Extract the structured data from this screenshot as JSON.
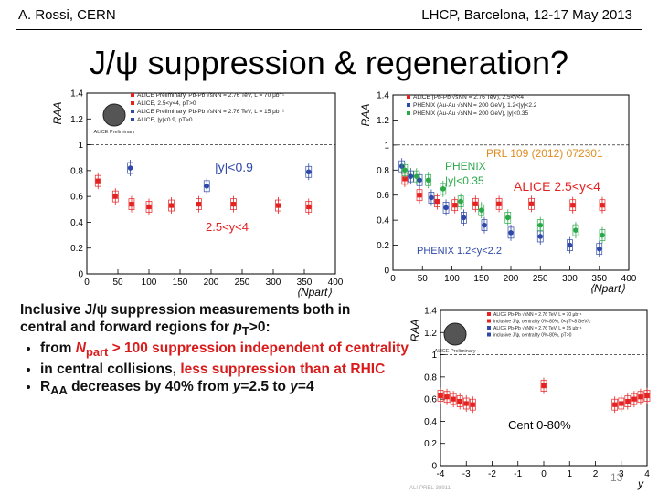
{
  "header": {
    "author": "A. Rossi, CERN",
    "conference": "LHCP, Barcelona, 12-17 May 2013"
  },
  "slide": {
    "title": "J/ψ suppression & regeneration?",
    "page_number": "13"
  },
  "text_block": {
    "intro_line1": "Inclusive J/ψ suppression measurements both in",
    "intro_line2_a": "central and forward regions for ",
    "intro_line2_pt": "p",
    "intro_line2_pt_sub": "T",
    "intro_line2_b": ">0:",
    "b1_a": "from ",
    "b1_npart": "N",
    "b1_npart_sub": "part",
    "b1_b": " > 100 suppression independent of centrality",
    "b2_a": "in central collisions, ",
    "b2_b": "less suppression than at RHIC",
    "b3_a": "R",
    "b3_a_sub": "AA",
    "b3_b": " decreases by 40% from ",
    "b3_y1": "y",
    "b3_c": "=2.5 to ",
    "b3_y2": "y",
    "b3_d": "=4"
  },
  "chart_data": [
    {
      "type": "scatter",
      "title": "",
      "xlabel": "⟨N_part⟩",
      "ylabel": "R_AA",
      "xlim": [
        0,
        400
      ],
      "ylim": [
        0,
        1.4
      ],
      "x_ticks": [
        0,
        50,
        100,
        150,
        200,
        250,
        300,
        350,
        400
      ],
      "y_ticks": [
        0,
        0.2,
        0.4,
        0.6,
        0.8,
        1,
        1.2,
        1.4
      ],
      "legend_position": "top",
      "logo": "ALICE Preliminary",
      "legend": [
        {
          "label": "ALICE Preliminary, Pb-Pb √s_NN = 2.76 TeV, L = 70 μb⁻¹",
          "color": "#e52222"
        },
        {
          "label": "ALICE, 2.5<y<4, p_T>0",
          "color": "#e52222"
        },
        {
          "label": "ALICE Preliminary, Pb-Pb √s_NN = 2.76 TeV, L = 15 μb⁻¹",
          "color": "#2f49a8"
        },
        {
          "label": "ALICE, |y|<0.9, p_T>0",
          "color": "#2f49a8"
        }
      ],
      "annotations": [
        {
          "text": "|y|<0.9",
          "color": "#2f49a8"
        },
        {
          "text": "2.5<y<4",
          "color": "#e52222"
        }
      ],
      "series": [
        {
          "name": "2.5<y<4",
          "color": "#e52222",
          "x": [
            18,
            46,
            72,
            100,
            136,
            180,
            236,
            308,
            357
          ],
          "y": [
            0.72,
            0.6,
            0.54,
            0.52,
            0.53,
            0.54,
            0.54,
            0.53,
            0.52
          ]
        },
        {
          "name": "|y|<0.9",
          "color": "#2f49a8",
          "x": [
            70,
            193,
            357
          ],
          "y": [
            0.82,
            0.68,
            0.79
          ]
        }
      ]
    },
    {
      "type": "scatter",
      "title": "",
      "xlabel": "⟨N_part⟩",
      "ylabel": "R_AA",
      "xlim": [
        0,
        400
      ],
      "ylim": [
        0,
        1.4
      ],
      "x_ticks": [
        0,
        50,
        100,
        150,
        200,
        250,
        300,
        350,
        400
      ],
      "y_ticks": [
        0,
        0.2,
        0.4,
        0.6,
        0.8,
        1,
        1.2,
        1.4
      ],
      "legend_position": "top",
      "legend": [
        {
          "label": "ALICE (Pb-Pb √s_NN = 2.76 TeV), 2.5<y<4",
          "color": "#e52222"
        },
        {
          "label": "PHENIX (Au-Au √s_NN = 200 GeV), 1.2<|y|<2.2",
          "color": "#2f49a8"
        },
        {
          "label": "PHENIX (Au-Au √s_NN = 200 GeV), |y|<0.35",
          "color": "#2aa84a"
        }
      ],
      "annotations": [
        {
          "text": "PRL 109 (2012) 072301",
          "color": "#e08a1e"
        },
        {
          "text": "PHENIX",
          "color": "#2aa84a"
        },
        {
          "text": "|y|<0.35",
          "color": "#2aa84a"
        },
        {
          "text": "ALICE 2.5<y<4",
          "color": "#e52222"
        },
        {
          "text": "PHENIX 1.2<y<2.2",
          "color": "#2f49a8"
        }
      ],
      "series": [
        {
          "name": "ALICE 2.5<y<4",
          "color": "#e52222",
          "x": [
            20,
            45,
            75,
            105,
            140,
            180,
            235,
            305,
            355
          ],
          "y": [
            0.73,
            0.6,
            0.55,
            0.52,
            0.53,
            0.53,
            0.53,
            0.52,
            0.52
          ]
        },
        {
          "name": "PHENIX 1.2<y<2.2",
          "color": "#2f49a8",
          "x": [
            15,
            30,
            45,
            65,
            90,
            120,
            155,
            200,
            250,
            300,
            350
          ],
          "y": [
            0.83,
            0.75,
            0.72,
            0.58,
            0.5,
            0.42,
            0.36,
            0.3,
            0.27,
            0.2,
            0.17
          ]
        },
        {
          "name": "PHENIX |y|<0.35",
          "color": "#2aa84a",
          "x": [
            20,
            40,
            60,
            85,
            115,
            150,
            195,
            250,
            310,
            355
          ],
          "y": [
            0.8,
            0.75,
            0.72,
            0.65,
            0.55,
            0.48,
            0.42,
            0.36,
            0.32,
            0.28
          ]
        }
      ]
    },
    {
      "type": "scatter",
      "title": "",
      "xlabel": "y",
      "ylabel": "R_AA",
      "xlim": [
        -4,
        4
      ],
      "ylim": [
        0,
        1.4
      ],
      "x_ticks": [
        -4,
        -3,
        -2,
        -1,
        0,
        1,
        2,
        3,
        4
      ],
      "y_ticks": [
        0,
        0.2,
        0.4,
        0.6,
        0.8,
        1,
        1.2,
        1.4
      ],
      "legend_position": "top",
      "logo": "ALICE Preliminary",
      "legend": [
        {
          "label": "ALICE Pb-Pb √s_NN = 2.76 TeV, L = 70 μb⁻¹",
          "color": "#e52222"
        },
        {
          "label": "inclusive J/ψ, centrality 0%-80%, 0<p_T<8 GeV/c",
          "color": "#e52222"
        },
        {
          "label": "ALICE Pb-Pb √s_NN = 2.76 TeV, L = 15 μb⁻¹",
          "color": "#2f49a8"
        },
        {
          "label": "inclusive J/ψ, centrality 0%-80%, p_T>0",
          "color": "#2f49a8"
        }
      ],
      "annotations": [
        {
          "text": "Cent 0-80%",
          "color": "#000000"
        }
      ],
      "series": [
        {
          "name": "forward",
          "color": "#e52222",
          "x": [
            -4,
            -3.75,
            -3.5,
            -3.25,
            -3,
            -2.75,
            2.75,
            3,
            3.25,
            3.5,
            3.75,
            4
          ],
          "y": [
            0.63,
            0.62,
            0.6,
            0.58,
            0.56,
            0.55,
            0.55,
            0.56,
            0.58,
            0.6,
            0.62,
            0.63
          ]
        },
        {
          "name": "mid",
          "color": "#e52222",
          "x": [
            0
          ],
          "y": [
            0.72
          ]
        }
      ],
      "footnote": "ALI-PREL-38911"
    }
  ],
  "colors": {
    "red": "#e52222",
    "blue": "#2f49a8",
    "green": "#2aa84a",
    "orange": "#e08a1e"
  }
}
